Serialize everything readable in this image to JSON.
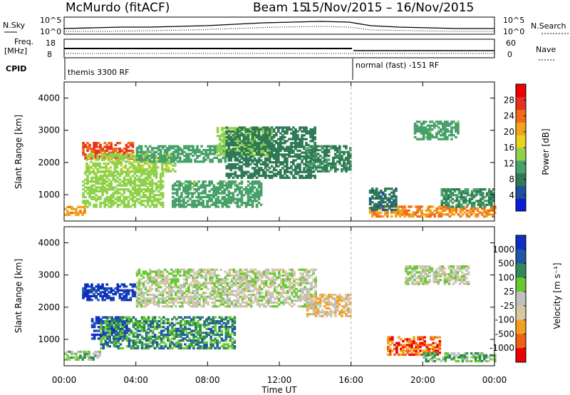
{
  "header": {
    "station": "McMurdo (fitACF)",
    "beam": "Beam 15",
    "date_range": "15/Nov/2015 – 16/Nov/2015"
  },
  "summary_panels": {
    "noise": {
      "left_label": "N.Sky",
      "right_label": "N.Search",
      "left_ticks": [
        "10^5",
        "10^0"
      ],
      "right_ticks": [
        "10^5",
        "10^0"
      ]
    },
    "freq": {
      "left_label_1": "Freq.",
      "left_label_2": "[MHz]",
      "right_label": "Nave",
      "left_ticks": [
        "18",
        "8"
      ],
      "right_ticks": [
        "60",
        "0"
      ]
    },
    "cpid": {
      "label": "CPID",
      "mode_1": "themis 3300 RF",
      "mode_2": "normal (fast) -151 RF"
    }
  },
  "colors": {
    "power": [
      "#0b1bd9",
      "#1f4f9e",
      "#2f7a55",
      "#48a06a",
      "#8fd14a",
      "#e8d21e",
      "#f2a31e",
      "#f06a14",
      "#e83020",
      "#ee0000"
    ],
    "velocity": [
      "#ee0000",
      "#f06010",
      "#f2a020",
      "#d8c8a0",
      "#c0c0c0",
      "#68c830",
      "#2f8a55",
      "#1f56a8",
      "#0f2fc0"
    ]
  },
  "chart_data": [
    {
      "type": "heatmap",
      "name": "power",
      "xlabel": "",
      "ylabel": "Slant Range [km]",
      "ylim": [
        180,
        4500
      ],
      "yticks": [
        1000,
        2000,
        3000,
        4000
      ],
      "xlim": [
        "00:00",
        "24:00"
      ],
      "colorbar": {
        "label": "Power [dB]",
        "min": 0,
        "max": 32,
        "ticks": [
          4,
          8,
          12,
          16,
          20,
          24,
          28
        ]
      },
      "bands": [
        {
          "t": [
            0.0,
            1.2
          ],
          "r": [
            350,
            650
          ],
          "v": 22
        },
        {
          "t": [
            1.0,
            3.8
          ],
          "r": [
            2100,
            2600
          ],
          "v": 27
        },
        {
          "t": [
            1.2,
            6.2
          ],
          "r": [
            1700,
            2300
          ],
          "v": 15
        },
        {
          "t": [
            1.0,
            5.5
          ],
          "r": [
            600,
            1700
          ],
          "v": 14
        },
        {
          "t": [
            4.0,
            9.0
          ],
          "r": [
            2000,
            2500
          ],
          "v": 11
        },
        {
          "t": [
            6.0,
            11.0
          ],
          "r": [
            600,
            1400
          ],
          "v": 11
        },
        {
          "t": [
            8.5,
            11.5
          ],
          "r": [
            2200,
            3100
          ],
          "v": 14
        },
        {
          "t": [
            9.0,
            14.0
          ],
          "r": [
            1500,
            3100
          ],
          "v": 7
        },
        {
          "t": [
            13.5,
            16.0
          ],
          "r": [
            1700,
            2500
          ],
          "v": 8
        },
        {
          "t": [
            17.0,
            24.0
          ],
          "r": [
            300,
            620
          ],
          "v": 23
        },
        {
          "t": [
            19.5,
            22.0
          ],
          "r": [
            2700,
            3300
          ],
          "v": 11
        },
        {
          "t": [
            17.0,
            18.5
          ],
          "r": [
            500,
            1200
          ],
          "v": 6
        },
        {
          "t": [
            21.0,
            24.0
          ],
          "r": [
            600,
            1200
          ],
          "v": 9
        }
      ]
    },
    {
      "type": "heatmap",
      "name": "velocity",
      "xlabel": "Time UT",
      "ylabel": "Slant Range [km]",
      "ylim": [
        180,
        4500
      ],
      "yticks": [
        1000,
        2000,
        3000,
        4000
      ],
      "xlim": [
        "00:00",
        "24:00"
      ],
      "xticks": [
        "00:00",
        "04:00",
        "08:00",
        "12:00",
        "16:00",
        "20:00",
        "00:00"
      ],
      "colorbar": {
        "label": "Velocity [m s⁻¹]",
        "ticks": [
          "1000",
          "500",
          "100",
          "25",
          "-25",
          "-100",
          "-500",
          "-1000"
        ]
      },
      "bands": [
        {
          "t": [
            0.0,
            2.0
          ],
          "r": [
            350,
            650
          ],
          "v": 5
        },
        {
          "t": [
            1.0,
            4.0
          ],
          "r": [
            2200,
            2700
          ],
          "v": 8
        },
        {
          "t": [
            1.5,
            3.5
          ],
          "r": [
            1000,
            1700
          ],
          "v": 8
        },
        {
          "t": [
            2.0,
            9.5
          ],
          "r": [
            700,
            1700
          ],
          "v": 6
        },
        {
          "t": [
            4.0,
            14.0
          ],
          "r": [
            2000,
            3200
          ],
          "v": 4
        },
        {
          "t": [
            13.5,
            16.0
          ],
          "r": [
            1700,
            2400
          ],
          "v": 3
        },
        {
          "t": [
            18.0,
            21.0
          ],
          "r": [
            500,
            1100
          ],
          "v": 1
        },
        {
          "t": [
            20.0,
            24.0
          ],
          "r": [
            300,
            600
          ],
          "v": 5
        },
        {
          "t": [
            19.0,
            22.5
          ],
          "r": [
            2700,
            3300
          ],
          "v": 4
        }
      ]
    }
  ]
}
